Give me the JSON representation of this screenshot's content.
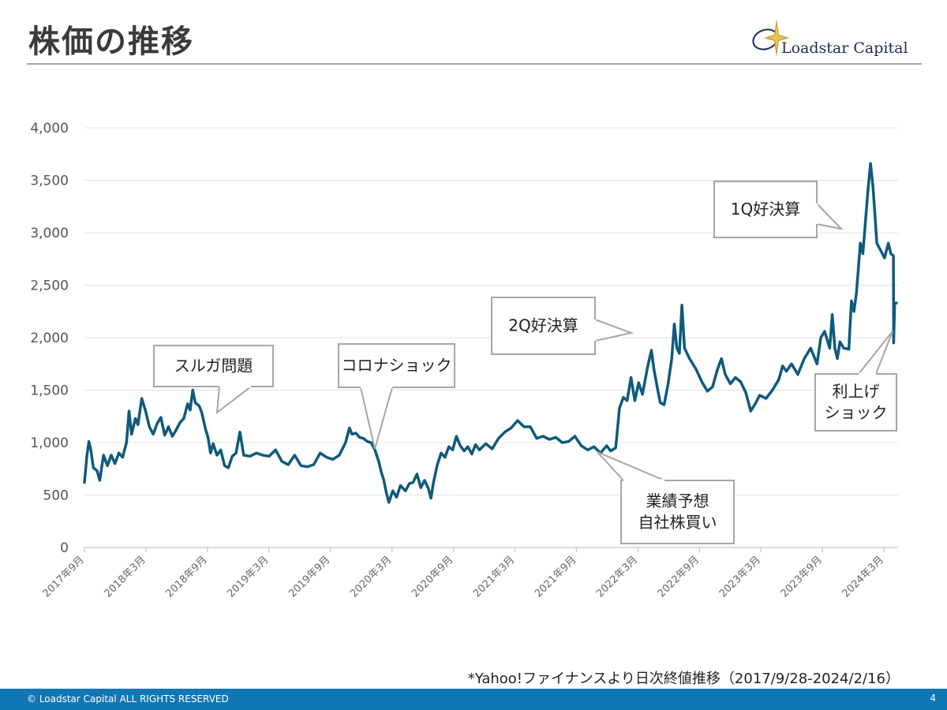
{
  "title": "株価の推移",
  "logo": {
    "text": "Loadstar Capital",
    "icon": "star-compass-icon"
  },
  "note": "*Yahoo!ファイナンスより日次終値推移（2017/9/28-2024/2/16）",
  "footer": {
    "copyright": "© Loadstar Capital ALL RIGHTS RESERVED",
    "page": "4"
  },
  "colors": {
    "line": "#0e5a7c",
    "footer": "#1177b4",
    "grid": "#e4e4e4",
    "callout_border": "#a6a6a6"
  },
  "chart_data": {
    "type": "line",
    "title": "",
    "xlabel": "",
    "ylabel": "",
    "ylim": [
      0,
      4000
    ],
    "yticks": [
      0,
      500,
      1000,
      1500,
      2000,
      2500,
      3000,
      3500,
      4000
    ],
    "ytick_labels": [
      "0",
      "500",
      "1,000",
      "1,500",
      "2,000",
      "2,500",
      "3,000",
      "3,500",
      "4,000"
    ],
    "xticks": [
      {
        "label": "2017年9月",
        "x": 2017.75
      },
      {
        "label": "2018年3月",
        "x": 2018.25
      },
      {
        "label": "2018年9月",
        "x": 2018.75
      },
      {
        "label": "2019年3月",
        "x": 2019.25
      },
      {
        "label": "2019年9月",
        "x": 2019.75
      },
      {
        "label": "2020年3月",
        "x": 2020.25
      },
      {
        "label": "2020年9月",
        "x": 2020.75
      },
      {
        "label": "2021年3月",
        "x": 2021.25
      },
      {
        "label": "2021年9月",
        "x": 2021.75
      },
      {
        "label": "2022年3月",
        "x": 2022.25
      },
      {
        "label": "2022年9月",
        "x": 2022.75
      },
      {
        "label": "2023年3月",
        "x": 2023.25
      },
      {
        "label": "2023年9月",
        "x": 2023.75
      },
      {
        "label": "2024年3月",
        "x": 2024.25
      }
    ],
    "xlim": [
      2017.75,
      2024.77
    ],
    "grid": true,
    "series": [
      {
        "points": [
          [
            2017.75,
            620
          ],
          [
            2017.77,
            880
          ],
          [
            2017.785,
            1010
          ],
          [
            2017.8,
            930
          ],
          [
            2017.82,
            760
          ],
          [
            2017.85,
            730
          ],
          [
            2017.87,
            640
          ],
          [
            2017.9,
            880
          ],
          [
            2017.93,
            780
          ],
          [
            2017.96,
            880
          ],
          [
            2017.99,
            800
          ],
          [
            2018.02,
            900
          ],
          [
            2018.05,
            860
          ],
          [
            2018.08,
            1000
          ],
          [
            2018.1,
            1300
          ],
          [
            2018.12,
            1080
          ],
          [
            2018.15,
            1230
          ],
          [
            2018.17,
            1170
          ],
          [
            2018.2,
            1420
          ],
          [
            2018.23,
            1300
          ],
          [
            2018.26,
            1150
          ],
          [
            2018.29,
            1080
          ],
          [
            2018.32,
            1180
          ],
          [
            2018.35,
            1240
          ],
          [
            2018.38,
            1070
          ],
          [
            2018.41,
            1150
          ],
          [
            2018.44,
            1060
          ],
          [
            2018.47,
            1120
          ],
          [
            2018.5,
            1190
          ],
          [
            2018.53,
            1230
          ],
          [
            2018.56,
            1370
          ],
          [
            2018.58,
            1310
          ],
          [
            2018.6,
            1500
          ],
          [
            2018.62,
            1380
          ],
          [
            2018.65,
            1350
          ],
          [
            2018.67,
            1290
          ],
          [
            2018.7,
            1130
          ],
          [
            2018.72,
            1050
          ],
          [
            2018.74,
            900
          ],
          [
            2018.76,
            990
          ],
          [
            2018.79,
            880
          ],
          [
            2018.82,
            930
          ],
          [
            2018.85,
            780
          ],
          [
            2018.88,
            760
          ],
          [
            2018.91,
            870
          ],
          [
            2018.94,
            900
          ],
          [
            2018.97,
            1100
          ],
          [
            2019.0,
            880
          ],
          [
            2019.05,
            870
          ],
          [
            2019.1,
            900
          ],
          [
            2019.15,
            880
          ],
          [
            2019.2,
            870
          ],
          [
            2019.25,
            930
          ],
          [
            2019.3,
            820
          ],
          [
            2019.35,
            790
          ],
          [
            2019.4,
            880
          ],
          [
            2019.45,
            780
          ],
          [
            2019.5,
            770
          ],
          [
            2019.55,
            790
          ],
          [
            2019.6,
            900
          ],
          [
            2019.65,
            860
          ],
          [
            2019.7,
            840
          ],
          [
            2019.75,
            880
          ],
          [
            2019.8,
            1000
          ],
          [
            2019.83,
            1140
          ],
          [
            2019.85,
            1080
          ],
          [
            2019.88,
            1090
          ],
          [
            2019.91,
            1050
          ],
          [
            2019.94,
            1040
          ],
          [
            2019.97,
            1010
          ],
          [
            2020.0,
            1000
          ],
          [
            2020.03,
            930
          ],
          [
            2020.06,
            820
          ],
          [
            2020.08,
            720
          ],
          [
            2020.1,
            640
          ],
          [
            2020.12,
            520
          ],
          [
            2020.14,
            430
          ],
          [
            2020.17,
            540
          ],
          [
            2020.2,
            480
          ],
          [
            2020.23,
            590
          ],
          [
            2020.27,
            540
          ],
          [
            2020.3,
            610
          ],
          [
            2020.33,
            620
          ],
          [
            2020.36,
            700
          ],
          [
            2020.39,
            570
          ],
          [
            2020.42,
            640
          ],
          [
            2020.45,
            560
          ],
          [
            2020.47,
            470
          ],
          [
            2020.49,
            620
          ],
          [
            2020.52,
            790
          ],
          [
            2020.55,
            900
          ],
          [
            2020.58,
            860
          ],
          [
            2020.61,
            960
          ],
          [
            2020.64,
            930
          ],
          [
            2020.67,
            1060
          ],
          [
            2020.7,
            970
          ],
          [
            2020.73,
            920
          ],
          [
            2020.76,
            960
          ],
          [
            2020.79,
            890
          ],
          [
            2020.82,
            980
          ],
          [
            2020.85,
            930
          ],
          [
            2020.9,
            990
          ],
          [
            2020.95,
            940
          ],
          [
            2021.0,
            1040
          ],
          [
            2021.05,
            1100
          ],
          [
            2021.1,
            1140
          ],
          [
            2021.15,
            1210
          ],
          [
            2021.2,
            1150
          ],
          [
            2021.25,
            1150
          ],
          [
            2021.3,
            1040
          ],
          [
            2021.35,
            1060
          ],
          [
            2021.4,
            1030
          ],
          [
            2021.45,
            1050
          ],
          [
            2021.5,
            1000
          ],
          [
            2021.55,
            1010
          ],
          [
            2021.6,
            1060
          ],
          [
            2021.65,
            970
          ],
          [
            2021.7,
            930
          ],
          [
            2021.75,
            960
          ],
          [
            2021.8,
            900
          ],
          [
            2021.85,
            970
          ],
          [
            2021.88,
            920
          ],
          [
            2021.92,
            950
          ],
          [
            2021.95,
            1330
          ],
          [
            2021.98,
            1430
          ],
          [
            2022.01,
            1400
          ],
          [
            2022.04,
            1620
          ],
          [
            2022.07,
            1400
          ],
          [
            2022.1,
            1570
          ],
          [
            2022.13,
            1460
          ],
          [
            2022.17,
            1720
          ],
          [
            2022.2,
            1880
          ],
          [
            2022.22,
            1700
          ],
          [
            2022.25,
            1500
          ],
          [
            2022.27,
            1380
          ],
          [
            2022.3,
            1360
          ],
          [
            2022.33,
            1550
          ],
          [
            2022.36,
            1800
          ],
          [
            2022.38,
            2130
          ],
          [
            2022.4,
            1900
          ],
          [
            2022.42,
            1850
          ],
          [
            2022.44,
            2310
          ],
          [
            2022.46,
            1900
          ],
          [
            2022.5,
            1800
          ],
          [
            2022.55,
            1700
          ],
          [
            2022.6,
            1570
          ],
          [
            2022.64,
            1490
          ],
          [
            2022.68,
            1530
          ],
          [
            2022.72,
            1700
          ],
          [
            2022.75,
            1800
          ],
          [
            2022.78,
            1650
          ],
          [
            2022.82,
            1560
          ],
          [
            2022.86,
            1620
          ],
          [
            2022.9,
            1580
          ],
          [
            2022.94,
            1480
          ],
          [
            2022.98,
            1300
          ],
          [
            2023.02,
            1380
          ],
          [
            2023.05,
            1450
          ],
          [
            2023.1,
            1420
          ],
          [
            2023.15,
            1500
          ],
          [
            2023.2,
            1600
          ],
          [
            2023.23,
            1730
          ],
          [
            2023.26,
            1680
          ],
          [
            2023.3,
            1750
          ],
          [
            2023.35,
            1650
          ],
          [
            2023.4,
            1800
          ],
          [
            2023.45,
            1900
          ],
          [
            2023.5,
            1750
          ],
          [
            2023.53,
            2000
          ],
          [
            2023.56,
            2060
          ],
          [
            2023.6,
            1900
          ],
          [
            2023.62,
            2220
          ],
          [
            2023.64,
            1900
          ],
          [
            2023.66,
            1800
          ],
          [
            2023.68,
            1960
          ],
          [
            2023.71,
            1900
          ],
          [
            2023.75,
            1890
          ],
          [
            2023.77,
            2350
          ],
          [
            2023.79,
            2250
          ],
          [
            2023.81,
            2430
          ],
          [
            2023.84,
            2900
          ],
          [
            2023.86,
            2800
          ],
          [
            2023.88,
            3100
          ],
          [
            2023.9,
            3400
          ],
          [
            2023.92,
            3660
          ],
          [
            2023.94,
            3430
          ],
          [
            2023.97,
            2900
          ],
          [
            2024.0,
            2830
          ],
          [
            2024.03,
            2760
          ],
          [
            2024.06,
            2900
          ],
          [
            2024.08,
            2800
          ],
          [
            2024.1,
            2780
          ],
          [
            2024.102,
            1950
          ],
          [
            2024.11,
            2330
          ],
          [
            2024.124,
            2330
          ]
        ]
      }
    ],
    "x_map": {
      "chart_start": 2017.75,
      "chart_end": 2024.124,
      "axis_end": 2024.77
    },
    "annotations": [
      {
        "lines": [
          "スルガ問題"
        ]
      },
      {
        "lines": [
          "コロナショック"
        ]
      },
      {
        "lines": [
          "2Q好決算"
        ]
      },
      {
        "lines": [
          "業績予想",
          "自社株買い"
        ]
      },
      {
        "lines": [
          "1Q好決算"
        ]
      },
      {
        "lines": [
          "利上げ",
          "ショック"
        ]
      }
    ]
  }
}
